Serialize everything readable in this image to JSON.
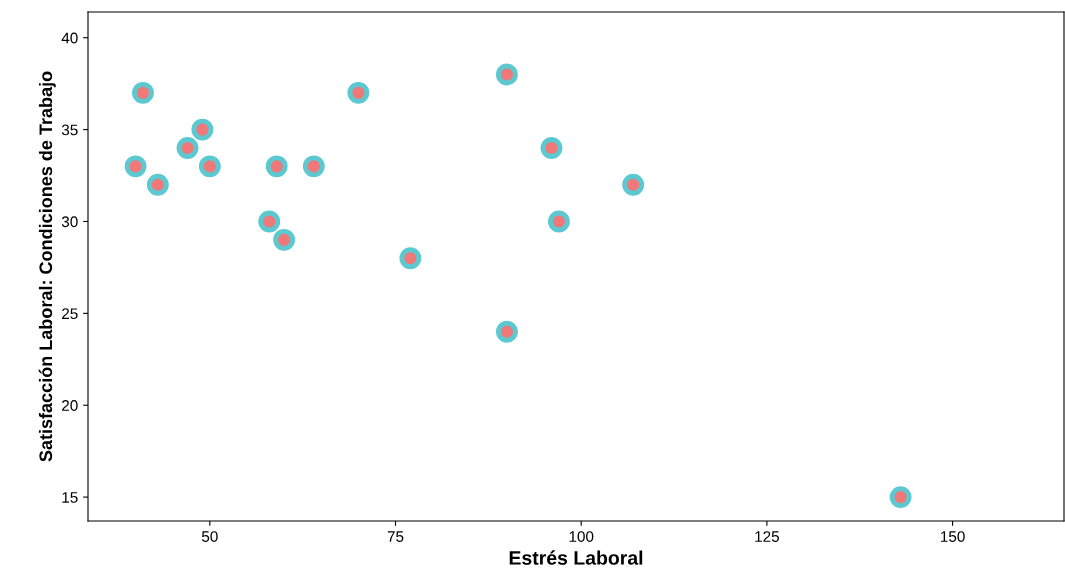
{
  "chart_data": {
    "type": "scatter",
    "xlabel": "Estrés Laboral",
    "ylabel": "Satisfacción Laboral: Condiciones de Trabajo",
    "series": [
      {
        "color": "#f07878",
        "x": [
          40,
          41,
          43,
          47,
          49,
          50,
          58,
          59,
          60,
          64,
          70,
          77,
          90,
          90,
          96,
          97,
          107,
          143
        ],
        "values": [
          33,
          37,
          32,
          34,
          35,
          33,
          30,
          33,
          29,
          33,
          37,
          28,
          38,
          24,
          34,
          30,
          32,
          15
        ]
      }
    ],
    "xlim": [
      33.6,
      165
    ],
    "xticks": [
      50,
      75,
      100,
      125,
      150
    ],
    "ylim": [
      13.7,
      41.4
    ],
    "yticks": [
      15,
      20,
      25,
      30,
      35,
      40
    ],
    "grid": false,
    "marker": "circle"
  }
}
